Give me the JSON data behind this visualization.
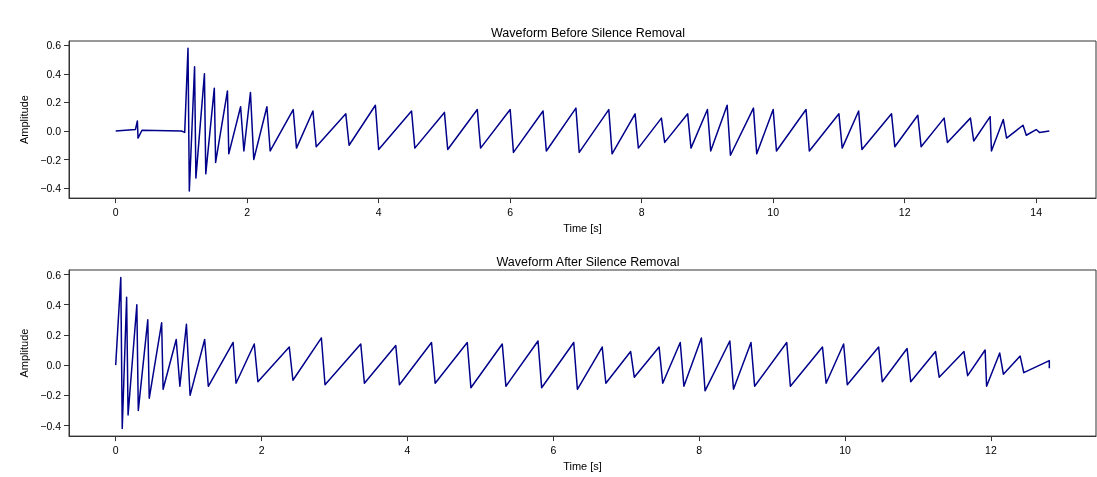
{
  "chart_data": [
    {
      "type": "line",
      "title": "Waveform Before Silence Removal",
      "xlabel": "Time [s]",
      "ylabel": "Amplitude",
      "xlim": [
        -0.71,
        14.91
      ],
      "ylim": [
        -0.47,
        0.63
      ],
      "xticks": [
        0,
        2,
        4,
        6,
        8,
        10,
        12,
        14
      ],
      "yticks": [
        {
          "value": -0.4,
          "label": "−0.4"
        },
        {
          "value": -0.2,
          "label": "−0.2"
        },
        {
          "value": 0,
          "label": "0.0"
        },
        {
          "value": 0.2,
          "label": "0.2"
        },
        {
          "value": 0.4,
          "label": "0.4"
        },
        {
          "value": 0.6,
          "label": "0.6"
        }
      ],
      "marker": "none",
      "series": [
        {
          "color": "#00008b",
          "x": [
            0,
            0.3,
            0.33,
            0.34,
            0.4,
            1.0,
            1.05,
            1.1,
            1.12,
            1.2,
            1.22,
            1.35,
            1.37,
            1.5,
            1.52,
            1.7,
            1.72,
            1.9,
            1.95,
            2.05,
            2.1,
            2.3,
            2.35,
            2.7,
            2.75,
            3.0,
            3.05,
            3.5,
            3.55,
            3.95,
            4.0,
            4.5,
            4.55,
            5.0,
            5.05,
            5.5,
            5.55,
            6.0,
            6.05,
            6.5,
            6.55,
            7.0,
            7.05,
            7.5,
            7.55,
            7.9,
            7.95,
            8.3,
            8.35,
            8.7,
            8.75,
            9.0,
            9.05,
            9.3,
            9.35,
            9.7,
            9.75,
            10.0,
            10.05,
            10.5,
            10.55,
            11.0,
            11.05,
            11.3,
            11.35,
            11.8,
            11.85,
            12.2,
            12.25,
            12.6,
            12.65,
            13.0,
            13.05,
            13.3,
            13.32,
            13.5,
            13.55,
            13.8,
            13.85,
            14.0,
            14.05,
            14.2
          ],
          "values": [
            0,
            0.01,
            0.07,
            -0.05,
            0.005,
            0,
            -0.01,
            0.58,
            -0.42,
            0.45,
            -0.33,
            0.4,
            -0.3,
            0.3,
            -0.22,
            0.28,
            -0.16,
            0.17,
            -0.14,
            0.27,
            -0.2,
            0.17,
            -0.14,
            0.15,
            -0.12,
            0.14,
            -0.11,
            0.12,
            -0.1,
            0.18,
            -0.13,
            0.14,
            -0.12,
            0.13,
            -0.13,
            0.15,
            -0.12,
            0.15,
            -0.15,
            0.14,
            -0.14,
            0.16,
            -0.15,
            0.15,
            -0.16,
            0.12,
            -0.12,
            0.09,
            -0.08,
            0.12,
            -0.12,
            0.15,
            -0.14,
            0.18,
            -0.17,
            0.16,
            -0.16,
            0.15,
            -0.14,
            0.15,
            -0.14,
            0.12,
            -0.12,
            0.14,
            -0.13,
            0.12,
            -0.11,
            0.11,
            -0.11,
            0.09,
            -0.08,
            0.09,
            -0.07,
            0.1,
            -0.14,
            0.08,
            -0.05,
            0.04,
            -0.03,
            0.01,
            -0.01,
            0
          ]
        }
      ]
    },
    {
      "type": "line",
      "title": "Waveform After Silence Removal",
      "xlabel": "Time [s]",
      "ylabel": "Amplitude",
      "xlim": [
        -0.64,
        13.44
      ],
      "ylim": [
        -0.47,
        0.63
      ],
      "xticks": [
        0,
        2,
        4,
        6,
        8,
        10,
        12
      ],
      "yticks": [
        {
          "value": -0.4,
          "label": "−0.4"
        },
        {
          "value": -0.2,
          "label": "−0.2"
        },
        {
          "value": 0,
          "label": "0.0"
        },
        {
          "value": 0.2,
          "label": "0.2"
        },
        {
          "value": 0.4,
          "label": "0.4"
        },
        {
          "value": 0.6,
          "label": "0.6"
        }
      ],
      "marker": "none",
      "series": [
        {
          "color": "#00008b",
          "x": [
            0,
            0.07,
            0.09,
            0.15,
            0.17,
            0.29,
            0.31,
            0.44,
            0.46,
            0.63,
            0.65,
            0.83,
            0.88,
            0.97,
            1.02,
            1.22,
            1.27,
            1.61,
            1.65,
            1.9,
            1.95,
            2.38,
            2.43,
            2.82,
            2.87,
            3.36,
            3.41,
            3.84,
            3.89,
            4.33,
            4.38,
            4.82,
            4.87,
            5.3,
            5.35,
            5.79,
            5.84,
            6.28,
            6.33,
            6.67,
            6.72,
            7.06,
            7.11,
            7.45,
            7.5,
            7.74,
            7.79,
            8.03,
            8.08,
            8.42,
            8.47,
            8.71,
            8.76,
            9.2,
            9.25,
            9.69,
            9.74,
            9.98,
            10.03,
            10.46,
            10.51,
            10.85,
            10.9,
            11.24,
            11.29,
            11.63,
            11.68,
            11.92,
            11.94,
            12.12,
            12.17,
            12.4,
            12.45,
            12.8,
            12.8
          ],
          "values": [
            0,
            0.58,
            -0.42,
            0.45,
            -0.33,
            0.4,
            -0.3,
            0.3,
            -0.22,
            0.28,
            -0.16,
            0.17,
            -0.14,
            0.27,
            -0.2,
            0.17,
            -0.14,
            0.15,
            -0.12,
            0.14,
            -0.11,
            0.12,
            -0.1,
            0.18,
            -0.13,
            0.14,
            -0.12,
            0.13,
            -0.13,
            0.15,
            -0.12,
            0.15,
            -0.15,
            0.14,
            -0.14,
            0.16,
            -0.15,
            0.15,
            -0.16,
            0.12,
            -0.12,
            0.09,
            -0.08,
            0.12,
            -0.12,
            0.15,
            -0.14,
            0.18,
            -0.17,
            0.16,
            -0.16,
            0.15,
            -0.14,
            0.15,
            -0.14,
            0.12,
            -0.12,
            0.14,
            -0.13,
            0.12,
            -0.11,
            0.11,
            -0.11,
            0.09,
            -0.08,
            0.09,
            -0.07,
            0.1,
            -0.14,
            0.08,
            -0.06,
            0.06,
            -0.05,
            0.03,
            -0.02
          ]
        }
      ]
    }
  ]
}
